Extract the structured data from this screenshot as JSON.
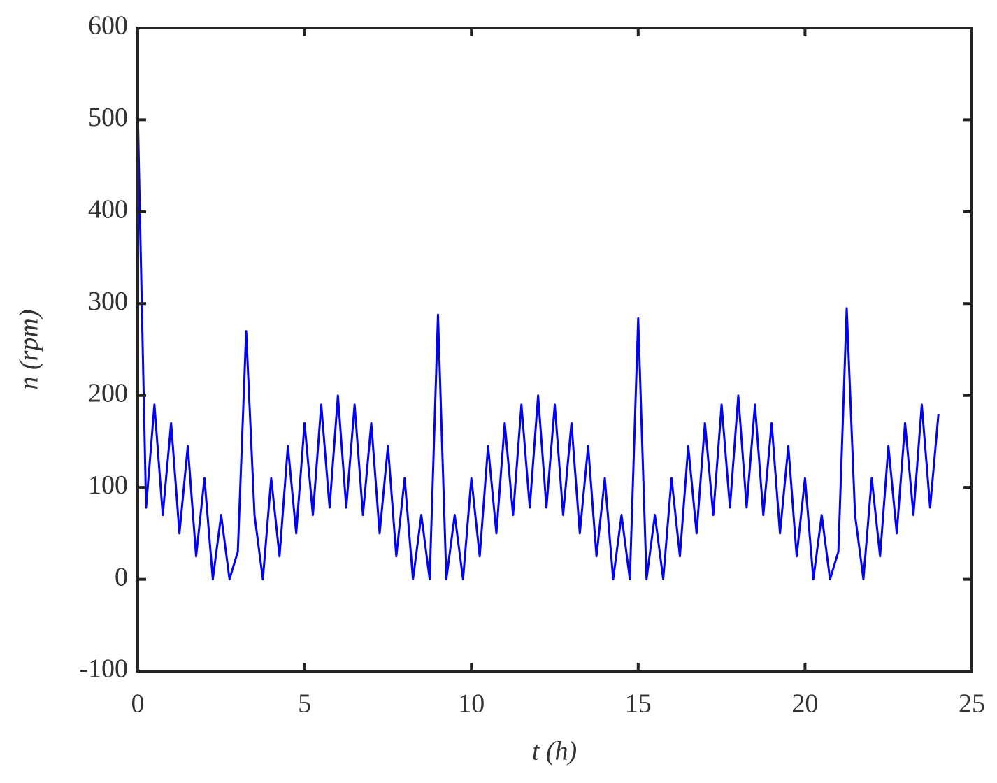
{
  "chart_data": {
    "type": "line",
    "xlabel": "t (h)",
    "ylabel": "n (rpm)",
    "x": [
      0,
      0.25,
      0.5,
      0.75,
      1,
      1.25,
      1.5,
      1.75,
      2,
      2.25,
      2.5,
      2.75,
      3,
      3.25,
      3.5,
      3.75,
      4,
      4.25,
      4.5,
      4.75,
      5,
      5.25,
      5.5,
      5.75,
      6,
      6.25,
      6.5,
      6.75,
      7,
      7.25,
      7.5,
      7.75,
      8,
      8.25,
      8.5,
      8.75,
      9,
      9.25,
      9.5,
      9.75,
      10,
      10.25,
      10.5,
      10.75,
      11,
      11.25,
      11.5,
      11.75,
      12,
      12.25,
      12.5,
      12.75,
      13,
      13.25,
      13.5,
      13.75,
      14,
      14.25,
      14.5,
      14.75,
      15,
      15.25,
      15.5,
      15.75,
      16,
      16.25,
      16.5,
      16.75,
      17,
      17.25,
      17.5,
      17.75,
      18,
      18.25,
      18.5,
      18.75,
      19,
      19.25,
      19.5,
      19.75,
      20,
      20.25,
      20.5,
      20.75,
      21,
      21.25,
      21.5,
      21.75,
      22,
      22.25,
      22.5,
      22.75,
      23,
      23.25,
      23.5,
      23.75,
      24
    ],
    "series": [
      {
        "color": "#0000ff",
        "values": [
          510,
          78,
          190,
          70,
          170,
          50,
          145,
          25,
          110,
          0,
          70,
          0,
          30,
          270,
          70,
          0,
          110,
          25,
          145,
          50,
          170,
          70,
          190,
          78,
          200,
          78,
          190,
          70,
          170,
          50,
          145,
          25,
          110,
          0,
          70,
          0,
          288,
          0,
          70,
          0,
          110,
          25,
          145,
          50,
          170,
          70,
          190,
          78,
          200,
          78,
          190,
          70,
          170,
          50,
          145,
          25,
          110,
          0,
          70,
          0,
          284,
          0,
          70,
          0,
          110,
          25,
          145,
          50,
          170,
          70,
          190,
          78,
          200,
          78,
          190,
          70,
          170,
          50,
          145,
          25,
          110,
          0,
          70,
          0,
          30,
          295,
          70,
          0,
          110,
          25,
          145,
          50,
          170,
          70,
          190,
          78,
          180
        ]
      }
    ],
    "xlim": [
      0,
      25
    ],
    "xticks": [
      0,
      5,
      10,
      15,
      20,
      25
    ],
    "ylim": [
      -100,
      600
    ],
    "yticks": [
      -100,
      0,
      100,
      200,
      300,
      400,
      500,
      600
    ]
  }
}
